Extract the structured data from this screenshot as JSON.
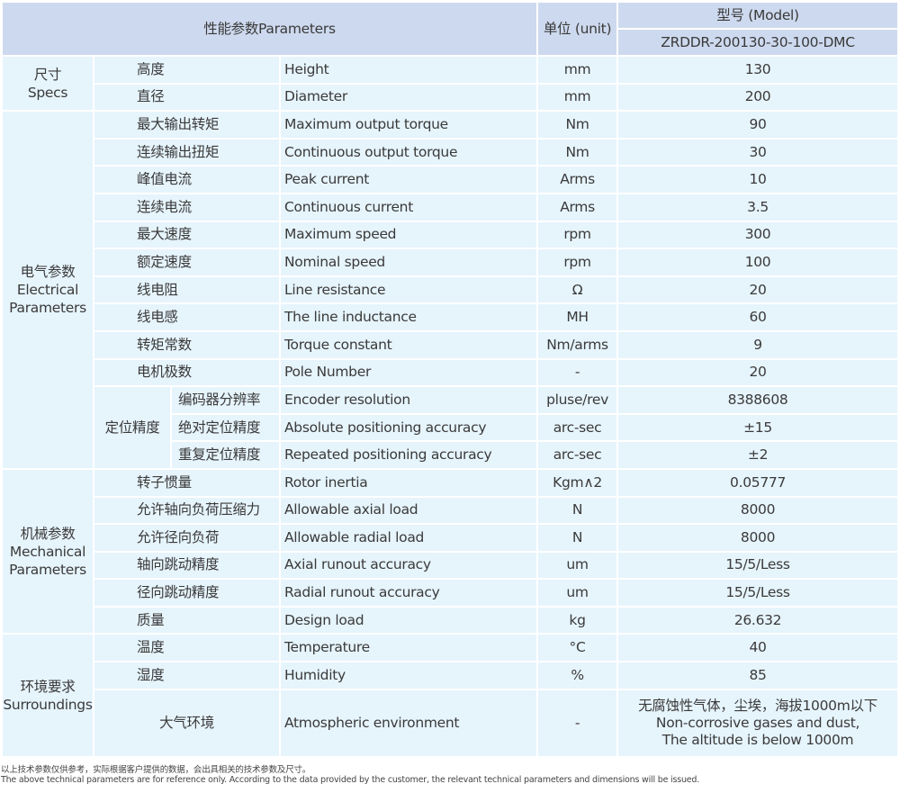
{
  "header": {
    "parameters": "性能参数Parameters",
    "unit": "单位 (unit)",
    "model_label": "型号 (Model)",
    "model": "ZRDDR-200130-30-100-DMC"
  },
  "groups": [
    {
      "label_cn": "尺寸",
      "label_en": "Specs",
      "rows": [
        {
          "cn": "高度",
          "en": "Height",
          "unit": "mm",
          "value": "130"
        },
        {
          "cn": "直径",
          "en": "Diameter",
          "unit": "mm",
          "value": "200"
        }
      ]
    },
    {
      "label_cn": "电气参数",
      "label_en": "Electrical Parameters",
      "rows": [
        {
          "cn": "最大输出转矩",
          "en": "Maximum output torque",
          "unit": "Nm",
          "value": "90"
        },
        {
          "cn": "连续输出扭矩",
          "en": "Continuous output torque",
          "unit": "Nm",
          "value": "30"
        },
        {
          "cn": "峰值电流",
          "en": "Peak current",
          "unit": "Arms",
          "value": "10"
        },
        {
          "cn": "连续电流",
          "en": "Continuous current",
          "unit": "Arms",
          "value": "3.5"
        },
        {
          "cn": "最大速度",
          "en": "Maximum speed",
          "unit": "rpm",
          "value": "300"
        },
        {
          "cn": "额定速度",
          "en": "Nominal speed",
          "unit": "rpm",
          "value": "100"
        },
        {
          "cn": "线电阻",
          "en": "Line resistance",
          "unit": "Ω",
          "value": "20"
        },
        {
          "cn": "线电感",
          "en": "The line inductance",
          "unit": "MH",
          "value": "60"
        },
        {
          "cn": "转矩常数",
          "en": "Torque constant",
          "unit": "Nm/arms",
          "value": "9"
        },
        {
          "cn": "电机极数",
          "en": "Pole Number",
          "unit": "-",
          "value": "20"
        },
        {
          "subgroup": "定位精度",
          "cn": "编码器分辨率",
          "en": "Encoder resolution",
          "unit": "pluse/rev",
          "value": "8388608"
        },
        {
          "subgroup": "定位精度",
          "cn": "绝对定位精度",
          "en": "Absolute positioning accuracy",
          "unit": "arc-sec",
          "value": "±15"
        },
        {
          "subgroup": "定位精度",
          "cn": "重复定位精度",
          "en": "Repeated positioning accuracy",
          "unit": "arc-sec",
          "value": "±2"
        }
      ]
    },
    {
      "label_cn": "机械参数",
      "label_en": "Mechanical Parameters",
      "rows": [
        {
          "cn": "转子惯量",
          "en": "Rotor inertia",
          "unit": "Kgm∧2",
          "value": "0.05777"
        },
        {
          "cn": "允许轴向负荷压缩力",
          "en": "Allowable axial load",
          "unit": "N",
          "value": "8000"
        },
        {
          "cn": "允许径向负荷",
          "en": "Allowable radial load",
          "unit": "N",
          "value": "8000"
        },
        {
          "cn": "轴向跳动精度",
          "en": "Axial runout accuracy",
          "unit": "um",
          "value": "15/5/Less"
        },
        {
          "cn": "径向跳动精度",
          "en": "Radial runout accuracy",
          "unit": "um",
          "value": "15/5/Less"
        },
        {
          "cn": "质量",
          "en": "Design load",
          "unit": "kg",
          "value": "26.632"
        }
      ]
    },
    {
      "label_cn": "环境要求",
      "label_en": "Surroundings",
      "rows": [
        {
          "cn": "温度",
          "en": "Temperature",
          "unit": "°C",
          "value": "40"
        },
        {
          "cn": "湿度",
          "en": "Humidity",
          "unit": "%",
          "value": "85"
        },
        {
          "cn": "大气环境",
          "en": "Atmospheric environment",
          "unit": "-",
          "value": "无腐蚀性气体，尘埃，海拔1000m以下\nNon-corrosive gases and dust,\nThe altitude is below 1000m",
          "tall": true
        }
      ]
    }
  ],
  "footer": {
    "cn": "以上技术参数仅供参考，实际根据客户提供的数据，会出具相关的技术参数及尺寸。",
    "en": "The above technical parameters are for reference only. According to the data provided by the customer, the relevant technical parameters and dimensions will be issued."
  }
}
